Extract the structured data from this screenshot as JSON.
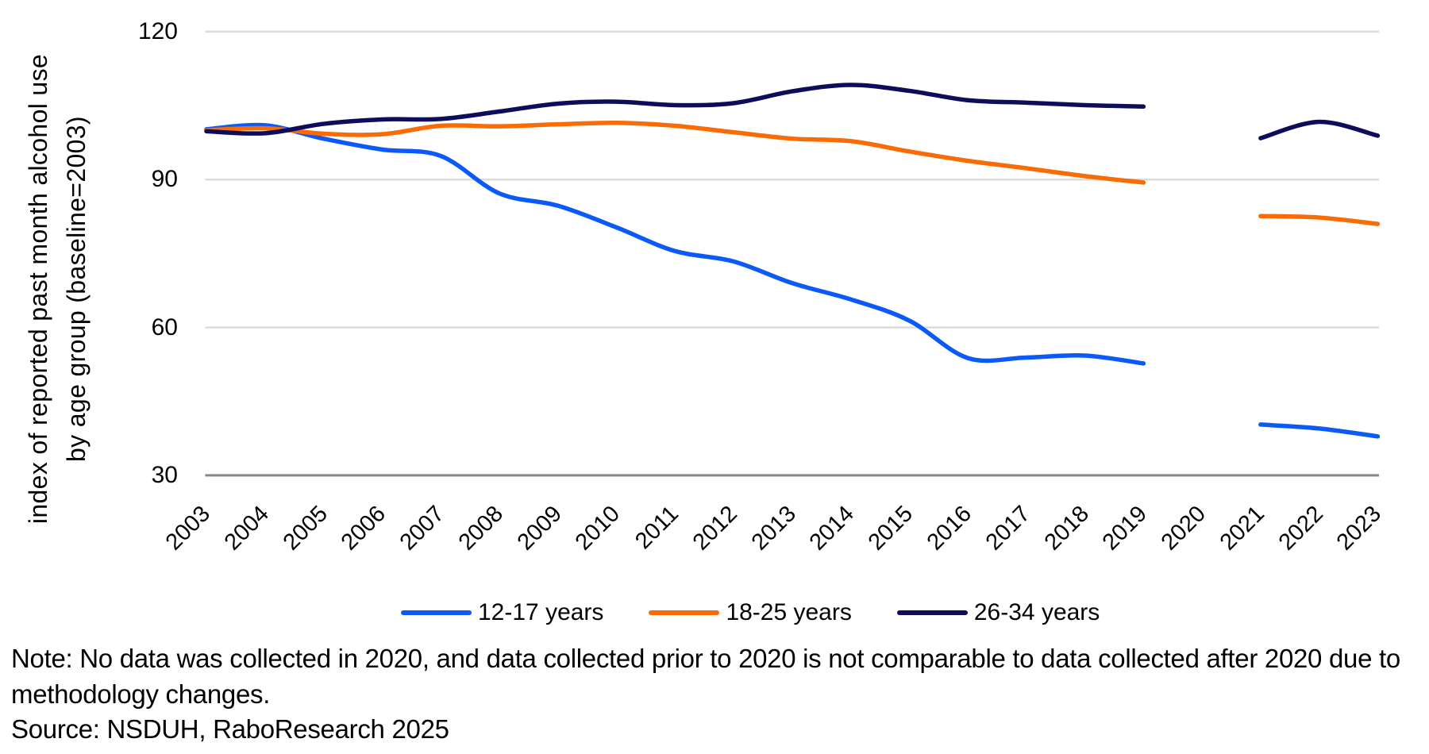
{
  "chart_data": {
    "type": "line",
    "x_categories": [
      "2003",
      "2004",
      "2005",
      "2006",
      "2007",
      "2008",
      "2009",
      "2010",
      "2011",
      "2012",
      "2013",
      "2014",
      "2015",
      "2016",
      "2017",
      "2018",
      "2019",
      "2020",
      "2021",
      "2022",
      "2023"
    ],
    "y_ticks": [
      "120",
      "90",
      "60",
      "30"
    ],
    "y_tick_values": [
      120,
      90,
      60,
      30
    ],
    "ylim": [
      30,
      120
    ],
    "ylabel_line1": "index of reported past month alcohol use",
    "ylabel_line2": "by age group (baseline=2003)",
    "grid": true,
    "legend_position": "bottom",
    "line_style": "smooth",
    "gap_note": "no data for 2020",
    "series": [
      {
        "name": "12-17 years",
        "color": "#0b59f7",
        "values": [
          100.2,
          101.0,
          98.3,
          96.1,
          94.8,
          87.2,
          84.7,
          80.3,
          75.5,
          73.4,
          69.0,
          65.7,
          61.4,
          53.8,
          53.9,
          54.3,
          52.7,
          null,
          40.3,
          39.5,
          37.9
        ]
      },
      {
        "name": "18-25 years",
        "color": "#f96b07",
        "values": [
          100.0,
          100.4,
          99.3,
          99.2,
          100.9,
          100.8,
          101.2,
          101.5,
          100.9,
          99.6,
          98.3,
          97.8,
          95.7,
          93.8,
          92.3,
          90.7,
          89.4,
          null,
          82.6,
          82.3,
          81.0
        ]
      },
      {
        "name": "26-34 years",
        "color": "#0d0d5c",
        "values": [
          99.8,
          99.4,
          101.3,
          102.2,
          102.3,
          103.8,
          105.4,
          105.8,
          105.1,
          105.5,
          107.9,
          109.2,
          108.0,
          106.1,
          105.6,
          105.1,
          104.8,
          null,
          98.4,
          101.7,
          98.9
        ]
      }
    ],
    "note": "Note: No data was collected in 2020, and data collected prior to 2020 is not comparable to data collected after 2020 due to methodology changes.",
    "source": "Source: NSDUH, RaboResearch 2025",
    "colors": {
      "gridline": "#dbdbdb",
      "axis_line": "#878787",
      "text": "#000000"
    }
  }
}
